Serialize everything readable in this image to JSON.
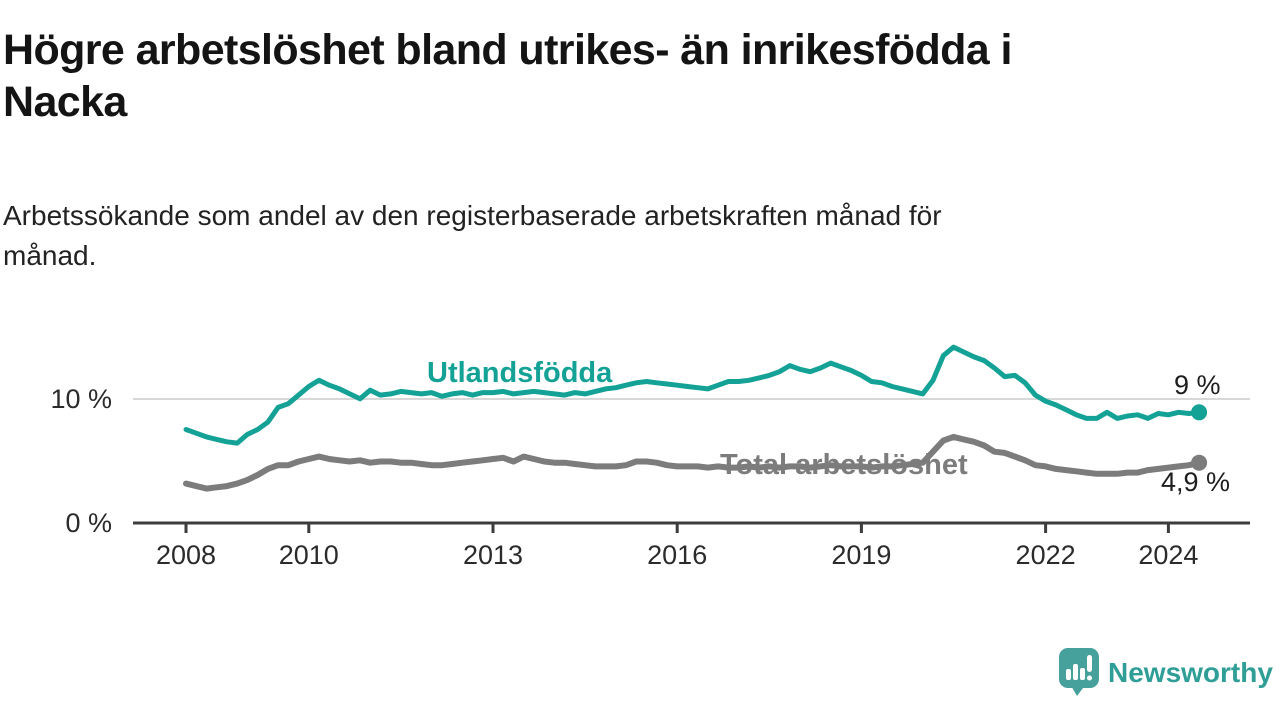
{
  "chart_data": {
    "type": "line",
    "title": "Högre arbetslöshet bland utrikes- än inrikesfödda i\nNacka",
    "subtitle": "Arbetssökande som andel av den registerbaserade arbetskraften månad för\nmånad.",
    "unit": "%",
    "x_start_year": 2008,
    "x_step_months": 2,
    "xlim": [
      2007.1,
      2025.3
    ],
    "ylim": [
      0,
      16
    ],
    "grid": "single-line-at-10",
    "grid_color": "#d8d8d8",
    "axis_color": "#3c3c3c",
    "tick_text_color": "#2b2b2b",
    "legend_position": "inline-labels-on-lines",
    "y_ticks": [
      {
        "value": 10,
        "label": "10 %"
      },
      {
        "value": 0,
        "label": "0 %"
      }
    ],
    "x_ticks": [
      {
        "year": 2008,
        "label": "2008"
      },
      {
        "year": 2010,
        "label": "2010"
      },
      {
        "year": 2013,
        "label": "2013"
      },
      {
        "year": 2016,
        "label": "2016"
      },
      {
        "year": 2019,
        "label": "2019"
      },
      {
        "year": 2022,
        "label": "2022"
      },
      {
        "year": 2024,
        "label": "2024"
      }
    ],
    "series": [
      {
        "name": "Utlandsfödda",
        "color": "#14a196",
        "end_label": "9 %",
        "end_value": 9.0,
        "values": [
          7.6,
          7.3,
          7.0,
          6.8,
          6.6,
          6.5,
          7.2,
          7.6,
          8.2,
          9.4,
          9.7,
          10.4,
          11.1,
          11.6,
          11.2,
          10.9,
          10.5,
          10.1,
          10.8,
          10.4,
          10.5,
          10.7,
          10.6,
          10.5,
          10.6,
          10.3,
          10.5,
          10.6,
          10.4,
          10.6,
          10.6,
          10.7,
          10.5,
          10.6,
          10.7,
          10.6,
          10.5,
          10.4,
          10.6,
          10.5,
          10.7,
          10.9,
          11.0,
          11.2,
          11.4,
          11.5,
          11.4,
          11.3,
          11.2,
          11.1,
          11.0,
          10.9,
          11.2,
          11.5,
          11.5,
          11.6,
          11.8,
          12.0,
          12.3,
          12.8,
          12.5,
          12.3,
          12.6,
          13.0,
          12.7,
          12.4,
          12.0,
          11.5,
          11.4,
          11.1,
          10.9,
          10.7,
          10.5,
          11.6,
          13.6,
          14.3,
          13.9,
          13.5,
          13.2,
          12.6,
          11.9,
          12.0,
          11.4,
          10.4,
          9.9,
          9.6,
          9.2,
          8.8,
          8.5,
          8.5,
          9.0,
          8.5,
          8.7,
          8.8,
          8.5,
          8.9,
          8.8,
          9.0,
          8.9,
          9.0
        ]
      },
      {
        "name": "Total arbetslöshet",
        "color": "#7c7c7c",
        "end_label": "4,9 %",
        "end_value": 4.9,
        "values": [
          3.2,
          3.0,
          2.8,
          2.9,
          3.0,
          3.2,
          3.5,
          3.9,
          4.4,
          4.7,
          4.7,
          5.0,
          5.2,
          5.4,
          5.2,
          5.1,
          5.0,
          5.1,
          4.9,
          5.0,
          5.0,
          4.9,
          4.9,
          4.8,
          4.7,
          4.7,
          4.8,
          4.9,
          5.0,
          5.1,
          5.2,
          5.3,
          5.0,
          5.4,
          5.2,
          5.0,
          4.9,
          4.9,
          4.8,
          4.7,
          4.6,
          4.6,
          4.6,
          4.7,
          5.0,
          5.0,
          4.9,
          4.7,
          4.6,
          4.6,
          4.6,
          4.5,
          4.6,
          4.5,
          4.5,
          4.6,
          4.5,
          4.6,
          4.5,
          4.6,
          4.6,
          4.5,
          4.6,
          4.7,
          4.6,
          4.6,
          4.6,
          4.5,
          4.6,
          4.6,
          4.7,
          4.8,
          4.9,
          5.8,
          6.7,
          7.0,
          6.8,
          6.6,
          6.3,
          5.8,
          5.7,
          5.4,
          5.1,
          4.7,
          4.6,
          4.4,
          4.3,
          4.2,
          4.1,
          4.0,
          4.0,
          4.0,
          4.1,
          4.1,
          4.3,
          4.4,
          4.5,
          4.6,
          4.7,
          4.9
        ]
      }
    ]
  },
  "logo": {
    "text": "Newsworthy",
    "icon": "speech-bubble-bar-chart-icon",
    "icon_color": "#46a09b",
    "text_color": "#2f9e96"
  }
}
